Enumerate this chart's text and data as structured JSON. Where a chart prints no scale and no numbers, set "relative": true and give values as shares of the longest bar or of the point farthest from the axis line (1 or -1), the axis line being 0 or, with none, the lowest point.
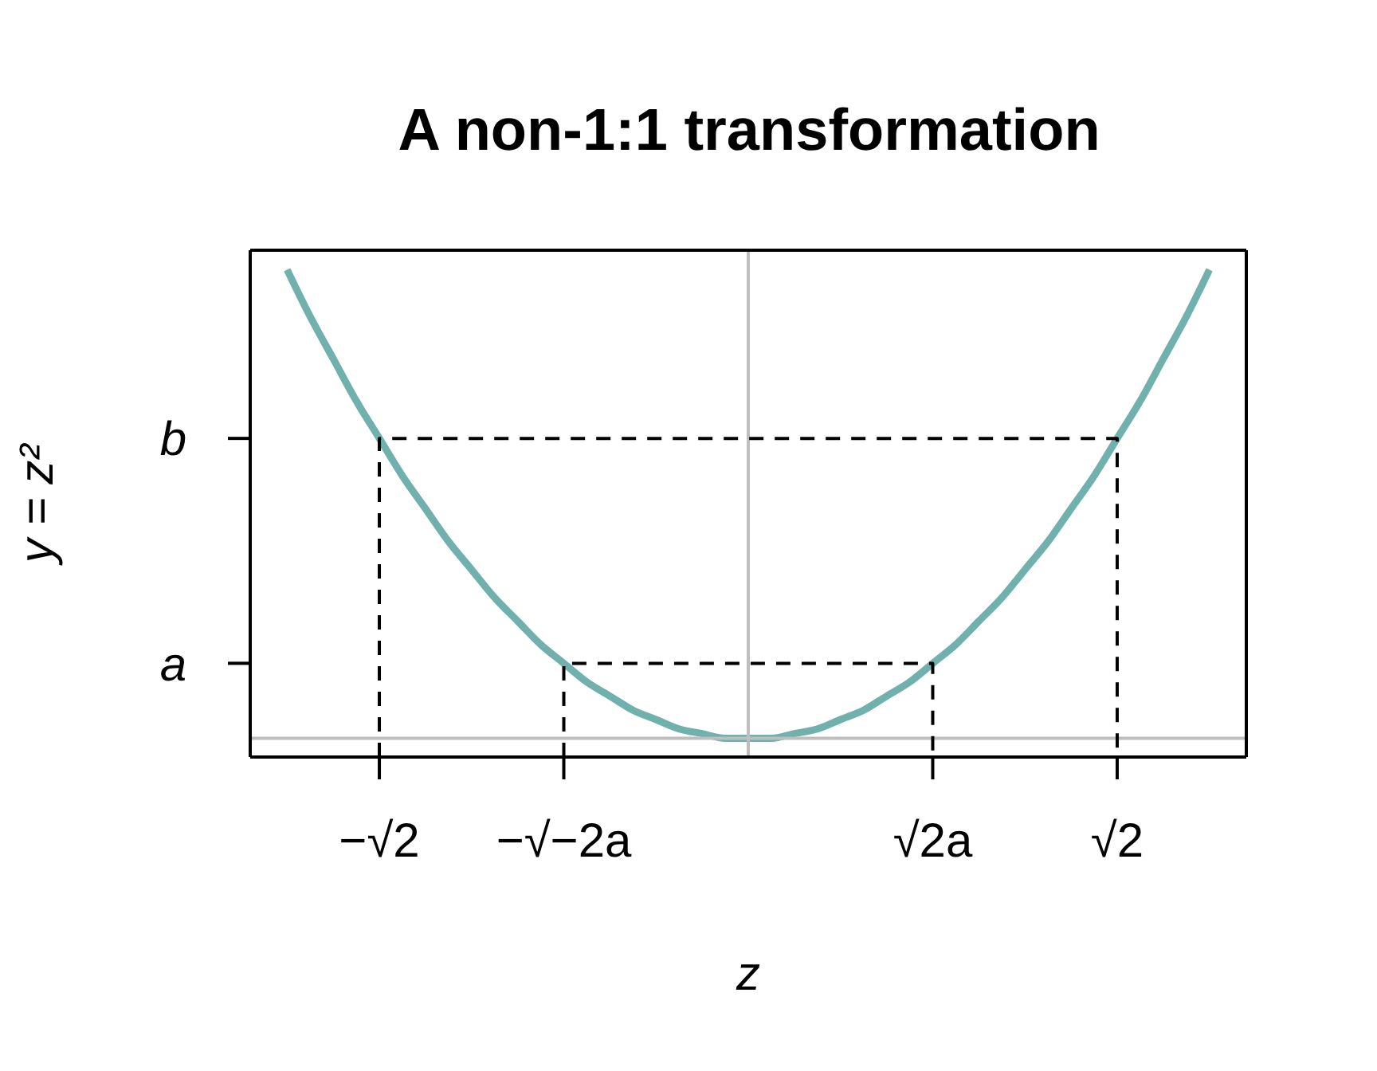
{
  "chart_data": {
    "type": "line",
    "title": "A non-1:1 transformation",
    "xlabel": "z",
    "ylabel": "y = z²",
    "relative": true,
    "categories": [
      null,
      null,
      null,
      null,
      "−√2",
      null,
      null,
      null,
      null,
      null,
      null,
      null,
      "−√−2a",
      null,
      null,
      null,
      null,
      null,
      null,
      null,
      null,
      null,
      null,
      null,
      null,
      null,
      null,
      null,
      "√2a",
      null,
      null,
      null,
      null,
      null,
      null,
      null,
      "√2",
      null,
      null,
      null,
      null
    ],
    "annotations": [
      "a",
      "b"
    ],
    "marker": "none",
    "ref_lines": [
      {
        "axis": "y",
        "value": 0,
        "color": "#bebebe"
      }
    ],
    "series": [
      {
        "color": "#70b0ad",
        "values": [
          1,
          0.9,
          0.81,
          0.72,
          0.64,
          0.56,
          0.49,
          0.42,
          0.36,
          0.3,
          0.25,
          0.2,
          0.16,
          0.12,
          0.09,
          0.06,
          0.04,
          0.02,
          0.01,
          0,
          0,
          0,
          0.01,
          0.02,
          0.04,
          0.06,
          0.09,
          0.12,
          0.16,
          0.2,
          0.25,
          0.3,
          0.36,
          0.42,
          0.49,
          0.56,
          0.64,
          0.72,
          0.81,
          0.9,
          1
        ]
      },
      {
        "color": "#000000",
        "line_style": "dashed",
        "x": [
          "−√−2a",
          "−√−2a",
          "√2a",
          "√2a"
        ],
        "values": [
          -0.04,
          0.16,
          0.16,
          -0.04
        ]
      },
      {
        "color": "#000000",
        "line_style": "dashed",
        "x": [
          "−√2",
          "−√2",
          "√2",
          "√2"
        ],
        "values": [
          -0.04,
          0.64,
          0.64,
          -0.04
        ]
      }
    ]
  }
}
